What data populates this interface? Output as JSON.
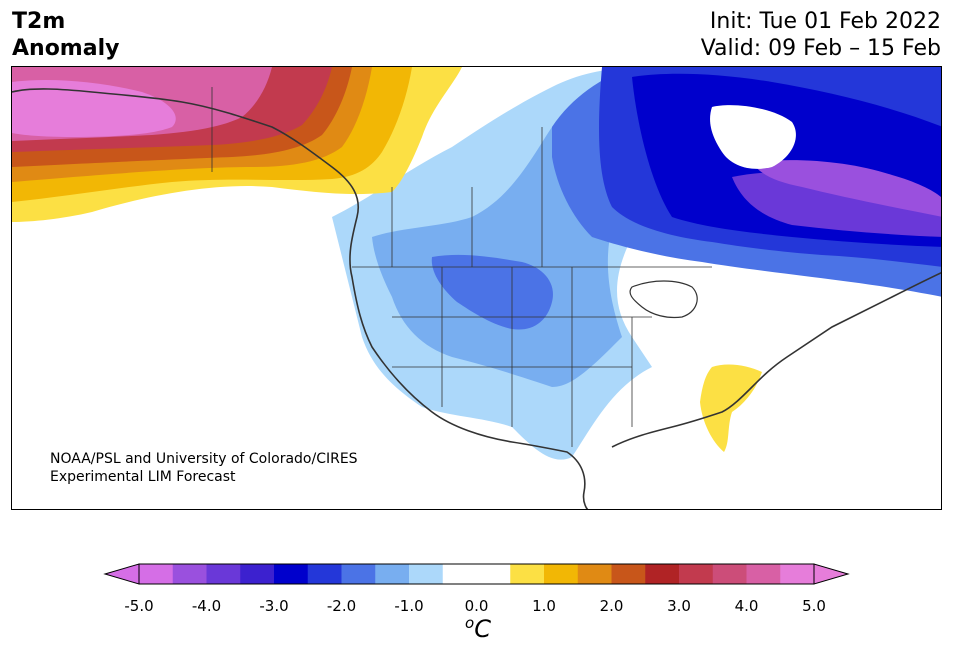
{
  "title": {
    "line1": "T2m",
    "line2": "Anomaly"
  },
  "init": "Init: Tue 01 Feb 2022",
  "valid": "Valid: 09 Feb – 15 Feb",
  "credit": {
    "line1": "NOAA/PSL and University of Colorado/CIRES",
    "line2": "Experimental LIM Forecast"
  },
  "colorbar": {
    "unit_base": "C",
    "unit_sup": "o",
    "ticks": [
      "-5.0",
      "-4.0",
      "-3.0",
      "-2.0",
      "-1.0",
      "0.0",
      "1.0",
      "2.0",
      "3.0",
      "4.0",
      "5.0"
    ],
    "bins": [
      {
        "from": -5.0,
        "to": -4.5,
        "color": "#d56ee6"
      },
      {
        "from": -4.5,
        "to": -4.0,
        "color": "#9a50de"
      },
      {
        "from": -4.0,
        "to": -3.5,
        "color": "#6a38d8"
      },
      {
        "from": -3.5,
        "to": -3.0,
        "color": "#3c21cf"
      },
      {
        "from": -3.0,
        "to": -2.5,
        "color": "#0000cc"
      },
      {
        "from": -2.5,
        "to": -2.0,
        "color": "#2437d9"
      },
      {
        "from": -2.0,
        "to": -1.5,
        "color": "#4b73e6"
      },
      {
        "from": -1.5,
        "to": -1.0,
        "color": "#78aef0"
      },
      {
        "from": -1.0,
        "to": -0.5,
        "color": "#acd8fa"
      },
      {
        "from": -0.5,
        "to": 0.5,
        "color": "#ffffff"
      },
      {
        "from": 0.5,
        "to": 1.0,
        "color": "#fce044"
      },
      {
        "from": 1.0,
        "to": 1.5,
        "color": "#f2b705"
      },
      {
        "from": 1.5,
        "to": 2.0,
        "color": "#e08a14"
      },
      {
        "from": 2.0,
        "to": 2.5,
        "color": "#c8561a"
      },
      {
        "from": 2.5,
        "to": 3.0,
        "color": "#b02325"
      },
      {
        "from": 3.0,
        "to": 3.5,
        "color": "#c23a4e"
      },
      {
        "from": 3.5,
        "to": 4.0,
        "color": "#cc4d79"
      },
      {
        "from": 4.0,
        "to": 4.5,
        "color": "#d860a5"
      },
      {
        "from": 4.5,
        "to": 5.0,
        "color": "#e67dda"
      }
    ],
    "under_color": "#d56ee6",
    "over_color": "#e67dda"
  },
  "colors": {
    "coast": "#333333",
    "cold_light": "#acd8fa",
    "cold_mid": "#78aef0",
    "cold_medium": "#4b73e6",
    "cold_strong": "#2437d9",
    "cold_deep": "#0000cc",
    "violet": "#6a38d8",
    "purple": "#9a50de",
    "warm_yellow": "#fce044",
    "warm_gold": "#f2b705",
    "warm_orange": "#e08a14",
    "warm_rust": "#c8561a",
    "warm_red": "#b02325",
    "warm_rose": "#c23a4e",
    "warm_pink": "#d860a5",
    "warm_magenta": "#e67dda"
  }
}
